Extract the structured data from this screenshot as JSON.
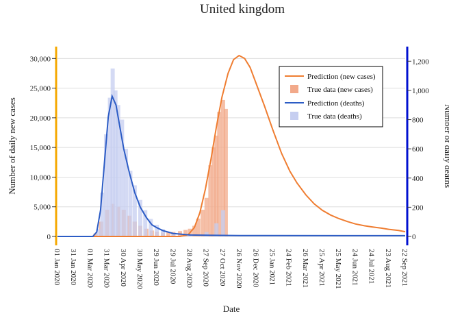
{
  "chart_data": {
    "type": "line",
    "title": "United kingdom",
    "xlabel": "Date",
    "ylabel_left": "Number of daily new cases",
    "ylabel_right": "Number of daily deaths",
    "x_tick_labels": [
      "01 Jan 2020",
      "31 Jan 2020",
      "01 Mar 2020",
      "31 Mar 2020",
      "30 Apr 2020",
      "30 May 2020",
      "29 Jun 2020",
      "29 Jul 2020",
      "28 Aug 2020",
      "27 Sep 2020",
      "27 Oct 2020",
      "26 Nov 2020",
      "26 Dec 2020",
      "25 Jan 2021",
      "24 Feb 2021",
      "26 Mar 2021",
      "25 Apr 2021",
      "25 May 2021",
      "24 Jun 2021",
      "24 Jul 2021",
      "23 Aug 2021",
      "22 Sep 2021"
    ],
    "x_range": [
      "2020-01-01",
      "2021-09-22"
    ],
    "ylim_left": [
      0,
      32000
    ],
    "ylim_right": [
      0,
      1300
    ],
    "y_ticks_left": [
      0,
      5000,
      10000,
      15000,
      20000,
      25000,
      30000
    ],
    "y_tick_labels_left": [
      "0",
      "5,000",
      "10,000",
      "15,000",
      "20,000",
      "25,000",
      "30,000"
    ],
    "y_ticks_right": [
      0,
      200,
      400,
      600,
      800,
      1000,
      1200
    ],
    "y_tick_labels_right": [
      "0",
      "200",
      "400",
      "600",
      "800",
      "1,000",
      "1,200"
    ],
    "legend_position": "top-right",
    "grid": true,
    "colors": {
      "prediction_cases": "#ef7d31",
      "true_cases": "#f2a98a",
      "prediction_deaths": "#2c5cc5",
      "true_deaths": "#c6cef0",
      "left_axis": "#f5a800",
      "right_axis": "#0010d0"
    },
    "series": [
      {
        "name": "Prediction (new cases)",
        "axis": "left",
        "kind": "line",
        "points": [
          [
            "2020-01-01",
            0
          ],
          [
            "2020-08-10",
            0
          ],
          [
            "2020-08-25",
            300
          ],
          [
            "2020-09-05",
            1500
          ],
          [
            "2020-09-15",
            4000
          ],
          [
            "2020-09-25",
            8000
          ],
          [
            "2020-10-05",
            13000
          ],
          [
            "2020-10-15",
            18500
          ],
          [
            "2020-10-25",
            23500
          ],
          [
            "2020-11-05",
            27500
          ],
          [
            "2020-11-15",
            29800
          ],
          [
            "2020-11-25",
            30500
          ],
          [
            "2020-12-05",
            30000
          ],
          [
            "2020-12-15",
            28500
          ],
          [
            "2020-12-25",
            26000
          ],
          [
            "2021-01-10",
            22000
          ],
          [
            "2021-01-25",
            18000
          ],
          [
            "2021-02-10",
            14000
          ],
          [
            "2021-02-25",
            11000
          ],
          [
            "2021-03-10",
            9000
          ],
          [
            "2021-03-26",
            7000
          ],
          [
            "2021-04-10",
            5500
          ],
          [
            "2021-04-25",
            4400
          ],
          [
            "2021-05-10",
            3600
          ],
          [
            "2021-05-25",
            3000
          ],
          [
            "2021-06-10",
            2500
          ],
          [
            "2021-06-24",
            2100
          ],
          [
            "2021-07-10",
            1800
          ],
          [
            "2021-07-24",
            1600
          ],
          [
            "2021-08-10",
            1400
          ],
          [
            "2021-08-23",
            1200
          ],
          [
            "2021-09-10",
            1000
          ],
          [
            "2021-09-22",
            800
          ]
        ]
      },
      {
        "name": "True data (new cases)",
        "axis": "left",
        "kind": "bar",
        "points": [
          [
            "2020-03-10",
            500
          ],
          [
            "2020-03-20",
            2500
          ],
          [
            "2020-03-31",
            4500
          ],
          [
            "2020-04-10",
            5500
          ],
          [
            "2020-04-20",
            5000
          ],
          [
            "2020-04-30",
            4500
          ],
          [
            "2020-05-10",
            3500
          ],
          [
            "2020-05-20",
            2500
          ],
          [
            "2020-05-30",
            1800
          ],
          [
            "2020-06-10",
            1300
          ],
          [
            "2020-06-20",
            1000
          ],
          [
            "2020-06-29",
            800
          ],
          [
            "2020-07-10",
            650
          ],
          [
            "2020-07-20",
            700
          ],
          [
            "2020-07-29",
            750
          ],
          [
            "2020-08-10",
            900
          ],
          [
            "2020-08-20",
            1100
          ],
          [
            "2020-08-28",
            1300
          ],
          [
            "2020-09-05",
            1800
          ],
          [
            "2020-09-12",
            3000
          ],
          [
            "2020-09-20",
            4500
          ],
          [
            "2020-09-27",
            6500
          ],
          [
            "2020-10-04",
            12000
          ],
          [
            "2020-10-10",
            15000
          ],
          [
            "2020-10-15",
            17000
          ],
          [
            "2020-10-20",
            21000
          ],
          [
            "2020-10-27",
            23000
          ],
          [
            "2020-11-01",
            21500
          ]
        ]
      },
      {
        "name": "Prediction (deaths)",
        "axis": "right",
        "kind": "line",
        "points": [
          [
            "2020-01-01",
            0
          ],
          [
            "2020-03-05",
            0
          ],
          [
            "2020-03-12",
            30
          ],
          [
            "2020-03-19",
            180
          ],
          [
            "2020-03-26",
            500
          ],
          [
            "2020-04-02",
            820
          ],
          [
            "2020-04-09",
            960
          ],
          [
            "2020-04-16",
            900
          ],
          [
            "2020-04-23",
            750
          ],
          [
            "2020-04-30",
            600
          ],
          [
            "2020-05-10",
            440
          ],
          [
            "2020-05-20",
            300
          ],
          [
            "2020-05-30",
            200
          ],
          [
            "2020-06-10",
            130
          ],
          [
            "2020-06-20",
            80
          ],
          [
            "2020-06-29",
            60
          ],
          [
            "2020-07-10",
            40
          ],
          [
            "2020-07-29",
            20
          ],
          [
            "2020-08-28",
            10
          ],
          [
            "2020-09-27",
            8
          ],
          [
            "2020-11-26",
            6
          ],
          [
            "2021-09-22",
            5
          ]
        ]
      },
      {
        "name": "True data (deaths)",
        "axis": "right",
        "kind": "bar",
        "points": [
          [
            "2020-03-15",
            50
          ],
          [
            "2020-03-22",
            300
          ],
          [
            "2020-03-29",
            700
          ],
          [
            "2020-04-05",
            950
          ],
          [
            "2020-04-10",
            1150
          ],
          [
            "2020-04-15",
            1000
          ],
          [
            "2020-04-20",
            900
          ],
          [
            "2020-04-27",
            800
          ],
          [
            "2020-05-04",
            600
          ],
          [
            "2020-05-12",
            450
          ],
          [
            "2020-05-20",
            350
          ],
          [
            "2020-05-30",
            250
          ],
          [
            "2020-06-08",
            180
          ],
          [
            "2020-06-18",
            120
          ],
          [
            "2020-06-29",
            80
          ],
          [
            "2020-07-10",
            50
          ],
          [
            "2020-07-29",
            25
          ],
          [
            "2020-08-28",
            15
          ],
          [
            "2020-09-27",
            30
          ],
          [
            "2020-10-15",
            90
          ],
          [
            "2020-10-27",
            180
          ]
        ]
      }
    ]
  }
}
